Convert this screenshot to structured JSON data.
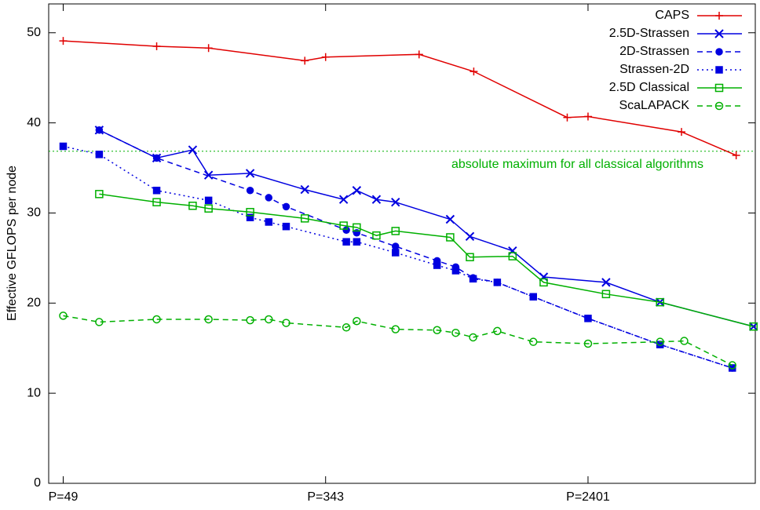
{
  "chart_data": {
    "type": "line",
    "y_label": "Effective GFLOPS per node",
    "log_x": true,
    "xlim": [
      44,
      8300
    ],
    "ylim": [
      0,
      53.2
    ],
    "xticks": [
      {
        "value": 49,
        "label": "P=49"
      },
      {
        "value": 343,
        "label": "P=343"
      },
      {
        "value": 2401,
        "label": "P=2401"
      }
    ],
    "yticks": [
      0,
      10,
      20,
      30,
      40,
      50
    ],
    "legend": "top-right",
    "reference_line": {
      "value": 36.85,
      "label": "absolute maximum for all classical algorithms",
      "color": "#00b000"
    },
    "series": [
      {
        "name": "CAPS",
        "color": "#e00000",
        "marker": "plus",
        "dash": "solid",
        "x": [
          49,
          98,
          144,
          294,
          343,
          686,
          1029,
          2058,
          2401,
          4802,
          7203
        ],
        "values": [
          49.1,
          48.5,
          48.3,
          46.9,
          47.3,
          47.6,
          45.7,
          40.6,
          40.7,
          39.0,
          36.4
        ]
      },
      {
        "name": "2.5D-Strassen",
        "color": "#0000e0",
        "marker": "cross",
        "dash": "solid",
        "x": [
          64,
          98,
          128,
          144,
          196,
          294,
          392,
          432,
          500,
          576,
          864,
          1000,
          1372,
          1728,
          2744,
          4096,
          8192
        ],
        "values": [
          39.2,
          36.1,
          37.0,
          34.2,
          34.4,
          32.6,
          31.5,
          32.5,
          31.5,
          31.2,
          29.3,
          27.4,
          25.8,
          22.9,
          22.3,
          20.1,
          17.4
        ]
      },
      {
        "name": "2D-Strassen",
        "color": "#0000e0",
        "marker": "dot",
        "dash": "dashed",
        "x": [
          64,
          98,
          196,
          225,
          256,
          400,
          432,
          576,
          784,
          900,
          1024,
          1225,
          1600,
          2401,
          4096,
          7000
        ],
        "values": [
          39.2,
          36.1,
          32.5,
          31.7,
          30.7,
          28.1,
          27.8,
          26.3,
          24.7,
          24.0,
          22.8,
          22.3,
          20.7,
          18.3,
          15.4,
          12.8
        ]
      },
      {
        "name": "Strassen-2D",
        "color": "#0000e0",
        "marker": "filled-square",
        "dash": "dotted",
        "x": [
          49,
          64,
          98,
          144,
          196,
          225,
          256,
          400,
          432,
          576,
          784,
          900,
          1024,
          1225,
          1600,
          2401,
          4096,
          7000
        ],
        "values": [
          37.4,
          36.5,
          32.5,
          31.4,
          29.5,
          29.0,
          28.5,
          26.8,
          26.8,
          25.6,
          24.2,
          23.6,
          22.7,
          22.3,
          20.7,
          18.3,
          15.4,
          12.8
        ]
      },
      {
        "name": "2.5D Classical",
        "color": "#00b000",
        "marker": "open-square",
        "dash": "solid",
        "x": [
          64,
          98,
          128,
          144,
          196,
          294,
          392,
          432,
          500,
          576,
          864,
          1000,
          1372,
          1728,
          2744,
          4096,
          8192
        ],
        "values": [
          32.1,
          31.2,
          30.8,
          30.5,
          30.1,
          29.4,
          28.6,
          28.4,
          27.5,
          28.0,
          27.3,
          25.1,
          25.2,
          22.3,
          21.0,
          20.1,
          17.4
        ]
      },
      {
        "name": "ScaLAPACK",
        "color": "#00b000",
        "marker": "open-circle",
        "dash": "dashed",
        "x": [
          49,
          64,
          98,
          144,
          196,
          225,
          256,
          400,
          432,
          576,
          784,
          900,
          1024,
          1225,
          1600,
          2401,
          4096,
          4900,
          7000
        ],
        "values": [
          18.6,
          17.9,
          18.2,
          18.2,
          18.1,
          18.2,
          17.8,
          17.3,
          18.0,
          17.1,
          17.0,
          16.7,
          16.2,
          16.9,
          15.7,
          15.5,
          15.7,
          15.8,
          13.1
        ]
      }
    ]
  }
}
